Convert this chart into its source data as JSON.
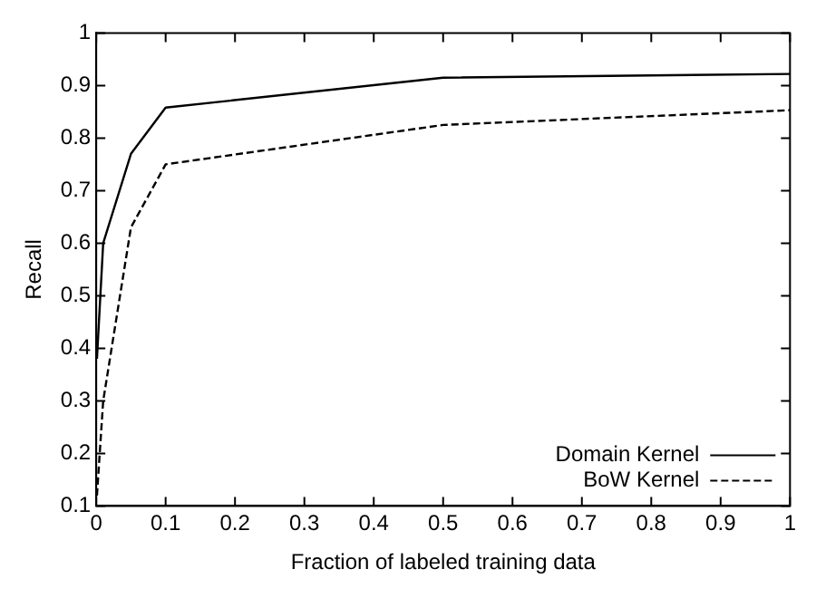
{
  "chart_data": {
    "type": "line",
    "xlabel": "Fraction of labeled training data",
    "ylabel": "Recall",
    "xlim": [
      0,
      1
    ],
    "xticks": [
      0,
      0.1,
      0.2,
      0.3,
      0.4,
      0.5,
      0.6,
      0.7,
      0.8,
      0.9,
      1
    ],
    "ylim": [
      0.1,
      1
    ],
    "yticks": [
      0.1,
      0.2,
      0.3,
      0.4,
      0.5,
      0.6,
      0.7,
      0.8,
      0.9,
      1
    ],
    "grid": false,
    "legend": "bottom right",
    "marker": "none",
    "series": [
      {
        "name": "Domain Kernel",
        "color": "#000000",
        "line_style": "solid",
        "x": [
          0.001,
          0.01,
          0.05,
          0.1,
          0.5,
          1
        ],
        "values": [
          0.38,
          0.6,
          0.77,
          0.858,
          0.915,
          0.922
        ]
      },
      {
        "name": "BoW Kernel",
        "color": "#000000",
        "line_style": "dashed",
        "x": [
          0.001,
          0.01,
          0.05,
          0.1,
          0.5,
          1
        ],
        "values": [
          0.12,
          0.3,
          0.63,
          0.75,
          0.825,
          0.853
        ]
      }
    ]
  }
}
